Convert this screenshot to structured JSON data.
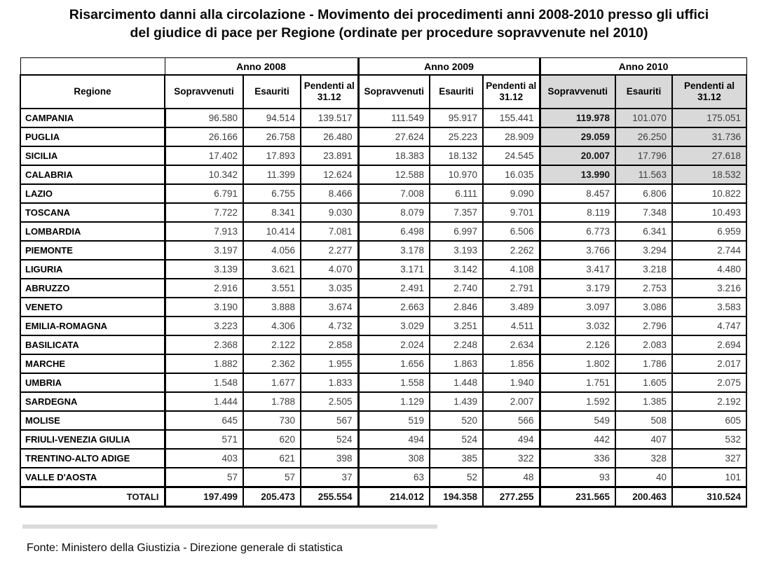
{
  "title_lines": [
    "Risarcimento danni alla circolazione - Movimento dei procedimenti anni 2008-2010 presso gli uffici",
    "del giudice di pace per Regione (ordinate per procedure sopravvenute nel 2010)"
  ],
  "colors": {
    "highlight_bg": "#d9d9d9",
    "border": "#000000"
  },
  "table": {
    "region_header": "Regione",
    "year_groups": [
      "Anno 2008",
      "Anno 2009",
      "Anno 2010"
    ],
    "sub_headers": [
      "Sopravvenuti",
      "Esauriti",
      "Pendenti al 31.12"
    ],
    "highlight_row_count": 4,
    "rows": [
      {
        "regione": "CAMPANIA",
        "y2008": [
          "96.580",
          "94.514",
          "139.517"
        ],
        "y2009": [
          "111.549",
          "95.917",
          "155.441"
        ],
        "y2010": [
          "119.978",
          "101.070",
          "175.051"
        ]
      },
      {
        "regione": "PUGLIA",
        "y2008": [
          "26.166",
          "26.758",
          "26.480"
        ],
        "y2009": [
          "27.624",
          "25.223",
          "28.909"
        ],
        "y2010": [
          "29.059",
          "26.250",
          "31.736"
        ]
      },
      {
        "regione": "SICILIA",
        "y2008": [
          "17.402",
          "17.893",
          "23.891"
        ],
        "y2009": [
          "18.383",
          "18.132",
          "24.545"
        ],
        "y2010": [
          "20.007",
          "17.796",
          "27.618"
        ]
      },
      {
        "regione": "CALABRIA",
        "y2008": [
          "10.342",
          "11.399",
          "12.624"
        ],
        "y2009": [
          "12.588",
          "10.970",
          "16.035"
        ],
        "y2010": [
          "13.990",
          "11.563",
          "18.532"
        ]
      },
      {
        "regione": "LAZIO",
        "y2008": [
          "6.791",
          "6.755",
          "8.466"
        ],
        "y2009": [
          "7.008",
          "6.111",
          "9.090"
        ],
        "y2010": [
          "8.457",
          "6.806",
          "10.822"
        ]
      },
      {
        "regione": "TOSCANA",
        "y2008": [
          "7.722",
          "8.341",
          "9.030"
        ],
        "y2009": [
          "8.079",
          "7.357",
          "9.701"
        ],
        "y2010": [
          "8.119",
          "7.348",
          "10.493"
        ]
      },
      {
        "regione": "LOMBARDIA",
        "y2008": [
          "7.913",
          "10.414",
          "7.081"
        ],
        "y2009": [
          "6.498",
          "6.997",
          "6.506"
        ],
        "y2010": [
          "6.773",
          "6.341",
          "6.959"
        ]
      },
      {
        "regione": "PIEMONTE",
        "y2008": [
          "3.197",
          "4.056",
          "2.277"
        ],
        "y2009": [
          "3.178",
          "3.193",
          "2.262"
        ],
        "y2010": [
          "3.766",
          "3.294",
          "2.744"
        ]
      },
      {
        "regione": "LIGURIA",
        "y2008": [
          "3.139",
          "3.621",
          "4.070"
        ],
        "y2009": [
          "3.171",
          "3.142",
          "4.108"
        ],
        "y2010": [
          "3.417",
          "3.218",
          "4.480"
        ]
      },
      {
        "regione": "ABRUZZO",
        "y2008": [
          "2.916",
          "3.551",
          "3.035"
        ],
        "y2009": [
          "2.491",
          "2.740",
          "2.791"
        ],
        "y2010": [
          "3.179",
          "2.753",
          "3.216"
        ]
      },
      {
        "regione": "VENETO",
        "y2008": [
          "3.190",
          "3.888",
          "3.674"
        ],
        "y2009": [
          "2.663",
          "2.846",
          "3.489"
        ],
        "y2010": [
          "3.097",
          "3.086",
          "3.583"
        ]
      },
      {
        "regione": "EMILIA-ROMAGNA",
        "y2008": [
          "3.223",
          "4.306",
          "4.732"
        ],
        "y2009": [
          "3.029",
          "3.251",
          "4.511"
        ],
        "y2010": [
          "3.032",
          "2.796",
          "4.747"
        ]
      },
      {
        "regione": "BASILICATA",
        "y2008": [
          "2.368",
          "2.122",
          "2.858"
        ],
        "y2009": [
          "2.024",
          "2.248",
          "2.634"
        ],
        "y2010": [
          "2.126",
          "2.083",
          "2.694"
        ]
      },
      {
        "regione": "MARCHE",
        "y2008": [
          "1.882",
          "2.362",
          "1.955"
        ],
        "y2009": [
          "1.656",
          "1.863",
          "1.856"
        ],
        "y2010": [
          "1.802",
          "1.786",
          "2.017"
        ]
      },
      {
        "regione": "UMBRIA",
        "y2008": [
          "1.548",
          "1.677",
          "1.833"
        ],
        "y2009": [
          "1.558",
          "1.448",
          "1.940"
        ],
        "y2010": [
          "1.751",
          "1.605",
          "2.075"
        ]
      },
      {
        "regione": "SARDEGNA",
        "y2008": [
          "1.444",
          "1.788",
          "2.505"
        ],
        "y2009": [
          "1.129",
          "1.439",
          "2.007"
        ],
        "y2010": [
          "1.592",
          "1.385",
          "2.192"
        ]
      },
      {
        "regione": "MOLISE",
        "y2008": [
          "645",
          "730",
          "567"
        ],
        "y2009": [
          "519",
          "520",
          "566"
        ],
        "y2010": [
          "549",
          "508",
          "605"
        ]
      },
      {
        "regione": "FRIULI-VENEZIA GIULIA",
        "y2008": [
          "571",
          "620",
          "524"
        ],
        "y2009": [
          "494",
          "524",
          "494"
        ],
        "y2010": [
          "442",
          "407",
          "532"
        ]
      },
      {
        "regione": "TRENTINO-ALTO ADIGE",
        "y2008": [
          "403",
          "621",
          "398"
        ],
        "y2009": [
          "308",
          "385",
          "322"
        ],
        "y2010": [
          "336",
          "328",
          "327"
        ]
      },
      {
        "regione": "VALLE D'AOSTA",
        "y2008": [
          "57",
          "57",
          "37"
        ],
        "y2009": [
          "63",
          "52",
          "48"
        ],
        "y2010": [
          "93",
          "40",
          "101"
        ]
      }
    ],
    "totals": {
      "label": "TOTALI",
      "y2008": [
        "197.499",
        "205.473",
        "255.554"
      ],
      "y2009": [
        "214.012",
        "194.358",
        "277.255"
      ],
      "y2010": [
        "231.565",
        "200.463",
        "310.524"
      ]
    }
  },
  "footer": "Fonte: Ministero della Giustizia - Direzione generale di statistica"
}
